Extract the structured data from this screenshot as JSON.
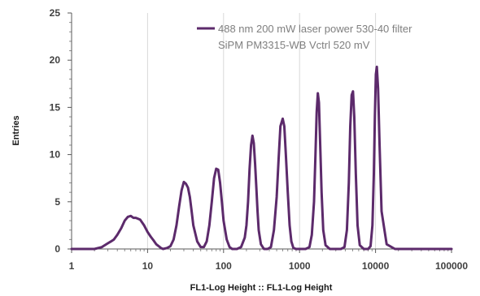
{
  "chart_data": {
    "type": "line",
    "xscale": "log",
    "xlim": [
      1,
      100000
    ],
    "ylim": [
      0,
      25
    ],
    "xticks": [
      "1",
      "10",
      "100",
      "1000",
      "10000",
      "100000"
    ],
    "yticks": [
      "0",
      "5",
      "10",
      "15",
      "20",
      "25"
    ],
    "xlabel": "FL1-Log Height :: FL1-Log Height",
    "ylabel": "Entries",
    "grid": "vertical at decades",
    "legend_position": "top-right",
    "series_color": "#5c2a6b",
    "legend": [
      "488 nm 200 mW laser power 530-40 filter",
      "SiPM PM3315-WB Vctrl 520 mV"
    ],
    "series": [
      {
        "x": [
          1,
          2,
          2.5,
          3,
          3.3,
          3.6,
          4,
          4.5,
          5,
          5.5,
          6,
          6.5,
          7,
          7.5,
          8,
          9,
          10,
          11,
          12,
          13,
          14,
          15,
          16,
          18,
          20,
          22,
          24,
          26,
          28,
          30,
          32,
          34,
          36,
          38,
          40,
          45,
          50,
          55,
          60,
          65,
          70,
          75,
          80,
          85,
          90,
          95,
          100,
          110,
          120,
          130,
          150,
          170,
          190,
          200,
          210,
          220,
          230,
          240,
          250,
          260,
          270,
          280,
          290,
          310,
          340,
          380,
          420,
          460,
          500,
          530,
          560,
          600,
          630,
          660,
          700,
          740,
          780,
          830,
          900,
          1000,
          1200,
          1350,
          1450,
          1550,
          1620,
          1680,
          1740,
          1800,
          1870,
          1950,
          2050,
          2200,
          2500,
          3000,
          3500,
          3900,
          4200,
          4450,
          4650,
          4850,
          5050,
          5250,
          5500,
          5800,
          6200,
          7000,
          8000,
          8600,
          9100,
          9500,
          9800,
          10100,
          10400,
          10800,
          11300,
          12000,
          14000,
          18000,
          30000,
          100000
        ],
        "y": [
          0,
          0,
          0.2,
          0.6,
          0.8,
          1.0,
          1.5,
          2.2,
          3.0,
          3.4,
          3.5,
          3.3,
          3.3,
          3.2,
          3.1,
          2.5,
          1.8,
          1.3,
          0.9,
          0.5,
          0.3,
          0.1,
          0,
          0.1,
          0.3,
          1.0,
          2.5,
          4.5,
          6.2,
          7.1,
          6.9,
          6.5,
          5.5,
          4.0,
          2.5,
          0.8,
          0.2,
          0.2,
          0.8,
          2.5,
          5.0,
          7.5,
          8.5,
          8.4,
          7.0,
          5.0,
          3.0,
          1.0,
          0.2,
          0,
          0,
          0.2,
          1.2,
          2.5,
          5.0,
          8.5,
          11.0,
          12.0,
          11.2,
          9.0,
          6.5,
          4.0,
          2.0,
          0.5,
          0,
          0,
          0.2,
          2.0,
          5.5,
          9.5,
          13.0,
          13.8,
          13.0,
          10.0,
          6.0,
          2.5,
          0.8,
          0.1,
          0,
          0,
          0,
          0.2,
          1.5,
          5.0,
          10.0,
          14.5,
          16.5,
          15.5,
          11.0,
          6.0,
          2.0,
          0.4,
          0,
          0,
          0,
          0.2,
          2.0,
          7.0,
          13.0,
          16.3,
          16.7,
          14.0,
          8.0,
          2.5,
          0.4,
          0,
          0,
          0.3,
          2.5,
          8.0,
          14.0,
          18.5,
          19.3,
          17.0,
          11.0,
          4.0,
          0.5,
          0,
          0,
          0
        ]
      }
    ]
  }
}
